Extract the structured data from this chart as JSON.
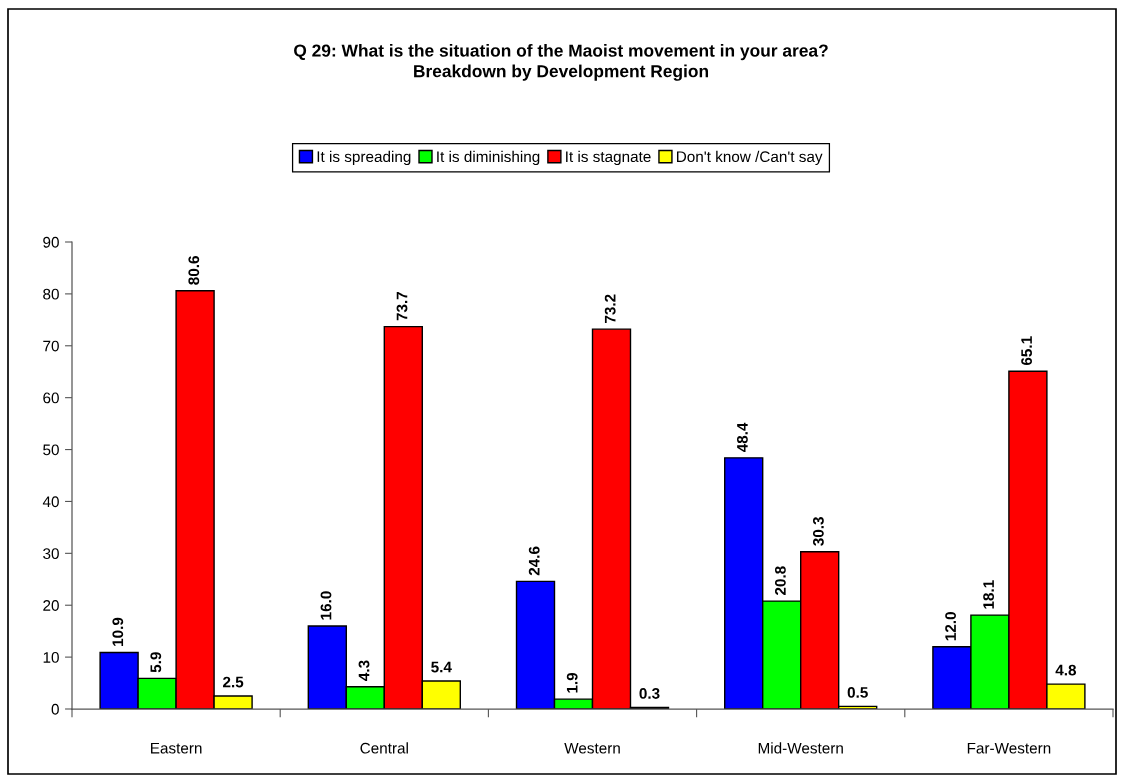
{
  "chart_data": {
    "type": "bar",
    "title": "Q 29: What is the situation of the Maoist movement in your area?\nBreakdown by Development Region",
    "categories": [
      "Eastern",
      "Central",
      "Western",
      "Mid-Western",
      "Far-Western"
    ],
    "series": [
      {
        "name": "It is spreading",
        "color": "#0000ff",
        "values": [
          10.9,
          16.0,
          24.6,
          48.4,
          12.0
        ],
        "value_labels": [
          "10.9",
          "16.0",
          "24.6",
          "48.4",
          "12.0"
        ]
      },
      {
        "name": "It is diminishing",
        "color": "#00ff00",
        "values": [
          5.9,
          4.3,
          1.9,
          20.8,
          18.1
        ],
        "value_labels": [
          "5.9",
          "4.3",
          "1.9",
          "20.8",
          "18.1"
        ]
      },
      {
        "name": "It is stagnate",
        "color": "#ff0000",
        "values": [
          80.6,
          73.7,
          73.2,
          30.3,
          65.1
        ],
        "value_labels": [
          "80.6",
          "73.7",
          "73.2",
          "30.3",
          "65.1"
        ]
      },
      {
        "name": "Don't know /Can't say",
        "color": "#ffff00",
        "values": [
          2.5,
          5.4,
          0.3,
          0.5,
          4.8
        ],
        "value_labels": [
          "2.5",
          "5.4",
          "0.3",
          "0.5",
          "4.8"
        ]
      }
    ],
    "ylim": [
      0,
      90
    ],
    "yticks": [
      0,
      10,
      20,
      30,
      40,
      50,
      60,
      70,
      80,
      90
    ],
    "legend": "top"
  }
}
